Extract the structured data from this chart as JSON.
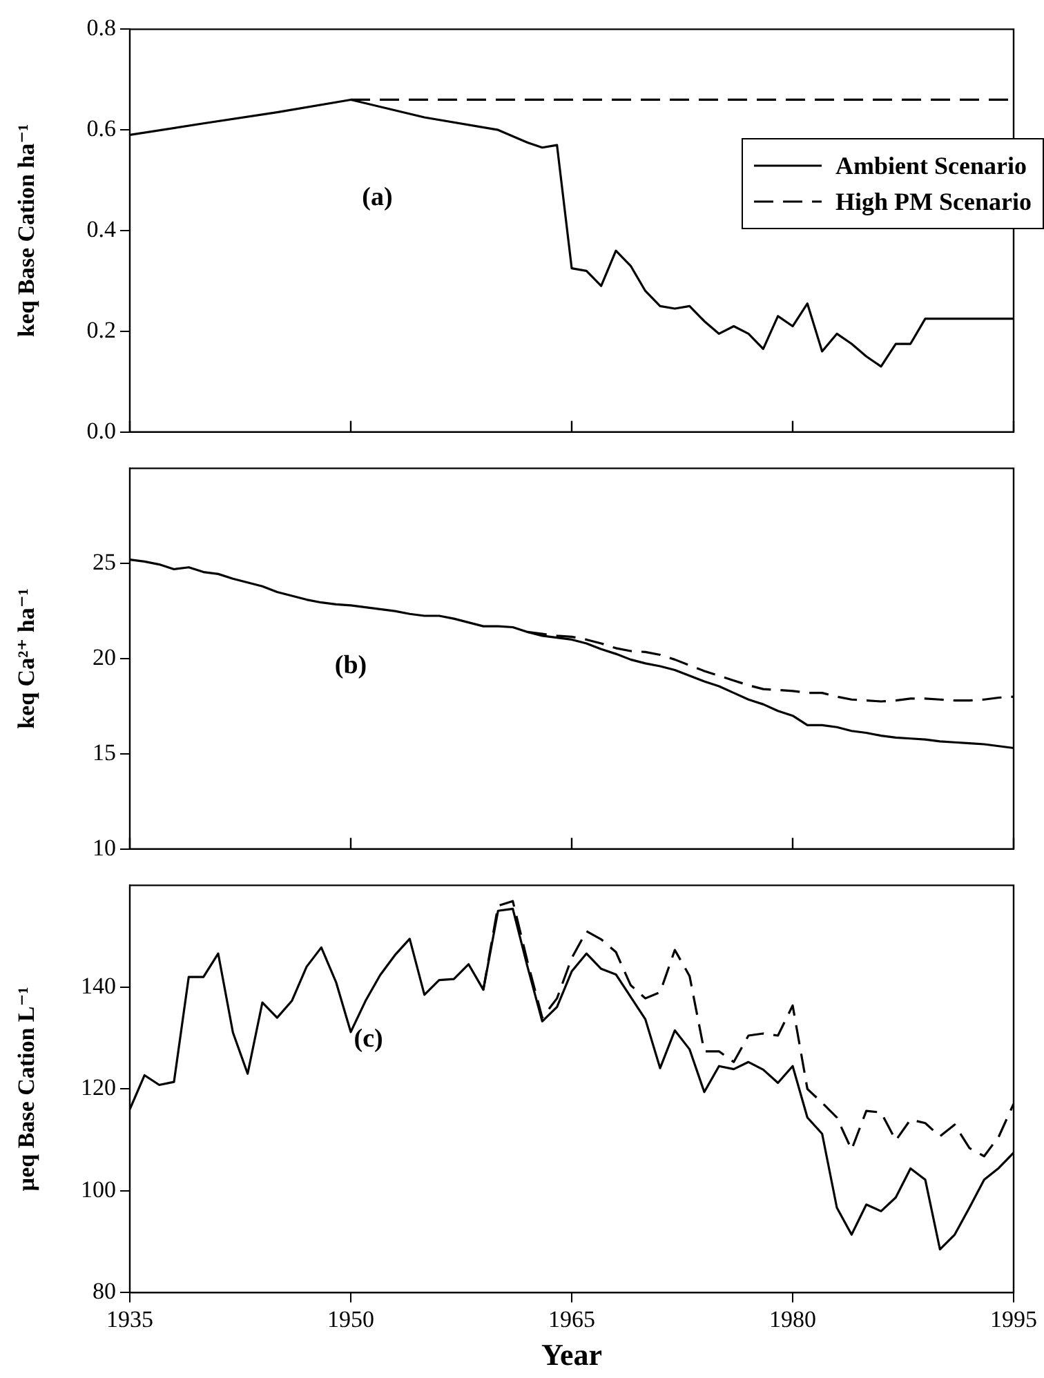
{
  "chart_data": [
    {
      "type": "line",
      "ylabel": "keq Base Cation ha⁻¹",
      "annotations": [
        "(a)"
      ],
      "xlim": [
        1935,
        1995
      ],
      "xticks": [
        1935,
        1950,
        1965,
        1980,
        1995
      ],
      "ylim": [
        0,
        0.8
      ],
      "yticks": [
        {
          "value": 0,
          "label": "0.0"
        },
        0.2,
        0.4,
        0.6,
        0.8
      ],
      "tick_labels": "y",
      "legend": "top right",
      "marker": "none",
      "series": [
        {
          "name": "Ambient Scenario",
          "color": "#000000",
          "line_style": "solid",
          "x": [
            1935,
            1940,
            1945,
            1950,
            1955,
            1960,
            1962,
            1963,
            1964,
            1965,
            1966,
            1967,
            1968,
            1969,
            1970,
            1971,
            1972,
            1973,
            1974,
            1975,
            1976,
            1977,
            1978,
            1979,
            1980,
            1981,
            1982,
            1983,
            1984,
            1985,
            1986,
            1987,
            1988,
            1989,
            1995
          ],
          "values": [
            0.59,
            0.613,
            0.635,
            0.66,
            0.625,
            0.6,
            0.575,
            0.565,
            0.57,
            0.325,
            0.32,
            0.29,
            0.36,
            0.33,
            0.28,
            0.25,
            0.245,
            0.25,
            0.22,
            0.195,
            0.21,
            0.195,
            0.165,
            0.23,
            0.21,
            0.255,
            0.16,
            0.195,
            0.175,
            0.15,
            0.13,
            0.175,
            0.175,
            0.225,
            0.225
          ]
        },
        {
          "name": "High PM Scenario",
          "color": "#000000",
          "line_style": "dashed",
          "x": [
            1950,
            1995
          ],
          "values": [
            0.66,
            0.66
          ]
        }
      ]
    },
    {
      "type": "line",
      "ylabel": "keq Ca²⁺ ha⁻¹",
      "annotations": [
        "(b)"
      ],
      "xlim": [
        1935,
        1995
      ],
      "xticks": [
        1935,
        1950,
        1965,
        1980,
        1995
      ],
      "ylim": [
        10,
        30
      ],
      "yticks": [
        10,
        15,
        20,
        25
      ],
      "tick_labels": "y",
      "marker": "none",
      "series": [
        {
          "color": "#000000",
          "line_style": "solid",
          "x": [
            1935,
            1936,
            1937,
            1938,
            1939,
            1940,
            1941,
            1942,
            1943,
            1944,
            1945,
            1946,
            1947,
            1948,
            1949,
            1950,
            1951,
            1952,
            1953,
            1954,
            1955,
            1956,
            1957,
            1958,
            1959,
            1960,
            1961,
            1962,
            1963,
            1964,
            1965,
            1966,
            1967,
            1968,
            1969,
            1970,
            1971,
            1972,
            1973,
            1974,
            1975,
            1976,
            1977,
            1978,
            1979,
            1980,
            1981,
            1982,
            1983,
            1984,
            1985,
            1986,
            1987,
            1988,
            1989,
            1990,
            1991,
            1992,
            1993,
            1994,
            1995
          ],
          "values": [
            25.2,
            25.1,
            24.95,
            24.7,
            24.8,
            24.55,
            24.45,
            24.2,
            24.0,
            23.8,
            23.5,
            23.3,
            23.1,
            22.95,
            22.85,
            22.8,
            22.7,
            22.6,
            22.5,
            22.35,
            22.25,
            22.25,
            22.1,
            21.9,
            21.7,
            21.7,
            21.65,
            21.4,
            21.2,
            21.1,
            21.0,
            20.8,
            20.5,
            20.25,
            19.95,
            19.75,
            19.6,
            19.4,
            19.1,
            18.8,
            18.55,
            18.2,
            17.85,
            17.6,
            17.25,
            17.0,
            16.5,
            16.5,
            16.4,
            16.2,
            16.1,
            15.95,
            15.85,
            15.8,
            15.75,
            15.65,
            15.6,
            15.55,
            15.5,
            15.4,
            15.3
          ]
        },
        {
          "color": "#000000",
          "line_style": "dashed",
          "x": [
            1962,
            1963,
            1964,
            1965,
            1966,
            1967,
            1968,
            1969,
            1970,
            1971,
            1972,
            1973,
            1974,
            1975,
            1976,
            1977,
            1978,
            1979,
            1980,
            1981,
            1982,
            1983,
            1984,
            1985,
            1986,
            1987,
            1988,
            1989,
            1990,
            1991,
            1992,
            1993,
            1994,
            1995
          ],
          "values": [
            21.4,
            21.3,
            21.2,
            21.15,
            21.0,
            20.8,
            20.55,
            20.4,
            20.35,
            20.2,
            19.95,
            19.65,
            19.35,
            19.1,
            18.85,
            18.6,
            18.4,
            18.35,
            18.3,
            18.2,
            18.2,
            18.0,
            17.85,
            17.8,
            17.75,
            17.8,
            17.9,
            17.9,
            17.85,
            17.8,
            17.8,
            17.85,
            17.95,
            18.0
          ]
        }
      ]
    },
    {
      "type": "line",
      "xlabel": "Year",
      "ylabel": "µeq Base Cation L⁻¹",
      "annotations": [
        "(c)"
      ],
      "xlim": [
        1935,
        1995
      ],
      "xticks": [
        1935,
        1950,
        1965,
        1980,
        1995
      ],
      "ylim": [
        80,
        160
      ],
      "yticks": [
        80,
        100,
        120,
        140
      ],
      "marker": "none",
      "series": [
        {
          "color": "#000000",
          "line_style": "solid",
          "x": [
            1935,
            1936,
            1937,
            1938,
            1939,
            1940,
            1941,
            1942,
            1943,
            1944,
            1945,
            1946,
            1947,
            1948,
            1949,
            1950,
            1951,
            1952,
            1953,
            1954,
            1955,
            1956,
            1957,
            1958,
            1959,
            1960,
            1961,
            1962,
            1963,
            1964,
            1965,
            1966,
            1967,
            1968,
            1969,
            1970,
            1971,
            1972,
            1973,
            1974,
            1975,
            1976,
            1977,
            1978,
            1979,
            1980,
            1981,
            1982,
            1983,
            1984,
            1985,
            1986,
            1987,
            1988,
            1989,
            1990,
            1991,
            1992,
            1993,
            1994,
            1995
          ],
          "values": [
            116,
            122.7,
            120.8,
            121.4,
            142,
            142,
            146.6,
            131.1,
            123,
            137,
            134,
            137.3,
            144,
            147.8,
            141,
            131.2,
            137.3,
            142.4,
            146.3,
            149.5,
            138.5,
            141.4,
            141.6,
            144.5,
            139.5,
            155,
            155.4,
            144,
            133.3,
            136.1,
            143.1,
            146.6,
            143.6,
            142.5,
            138.1,
            133.7,
            124.1,
            131.5,
            127.8,
            119.4,
            124.5,
            123.9,
            125.3,
            123.8,
            121.2,
            124.5,
            114.4,
            111.2,
            96.7,
            91.4,
            97.3,
            96,
            98.7,
            104.4,
            102.2,
            88.5,
            91.4,
            96.7,
            102.2,
            104.5,
            107.5
          ]
        },
        {
          "color": "#000000",
          "line_style": "dashed",
          "x": [
            1959,
            1960,
            1961,
            1962,
            1963,
            1964,
            1965,
            1966,
            1967,
            1968,
            1969,
            1970,
            1971,
            1972,
            1973,
            1974,
            1975,
            1976,
            1977,
            1978,
            1979,
            1980,
            1981,
            1982,
            1983,
            1984,
            1985,
            1986,
            1987,
            1988,
            1989,
            1990,
            1991,
            1992,
            1993,
            1994,
            1995
          ],
          "values": [
            139.5,
            156,
            156.9,
            145,
            134,
            137.8,
            145.7,
            151,
            149.4,
            146.9,
            140.4,
            137.8,
            139,
            147.3,
            142.2,
            127.4,
            127.4,
            125.3,
            130.5,
            130.9,
            130.5,
            136.4,
            120,
            117.3,
            114.4,
            108.1,
            115.7,
            115.4,
            109.9,
            114,
            113.3,
            110.7,
            113,
            108.4,
            106.8,
            110.7,
            117.1
          ]
        }
      ]
    }
  ]
}
